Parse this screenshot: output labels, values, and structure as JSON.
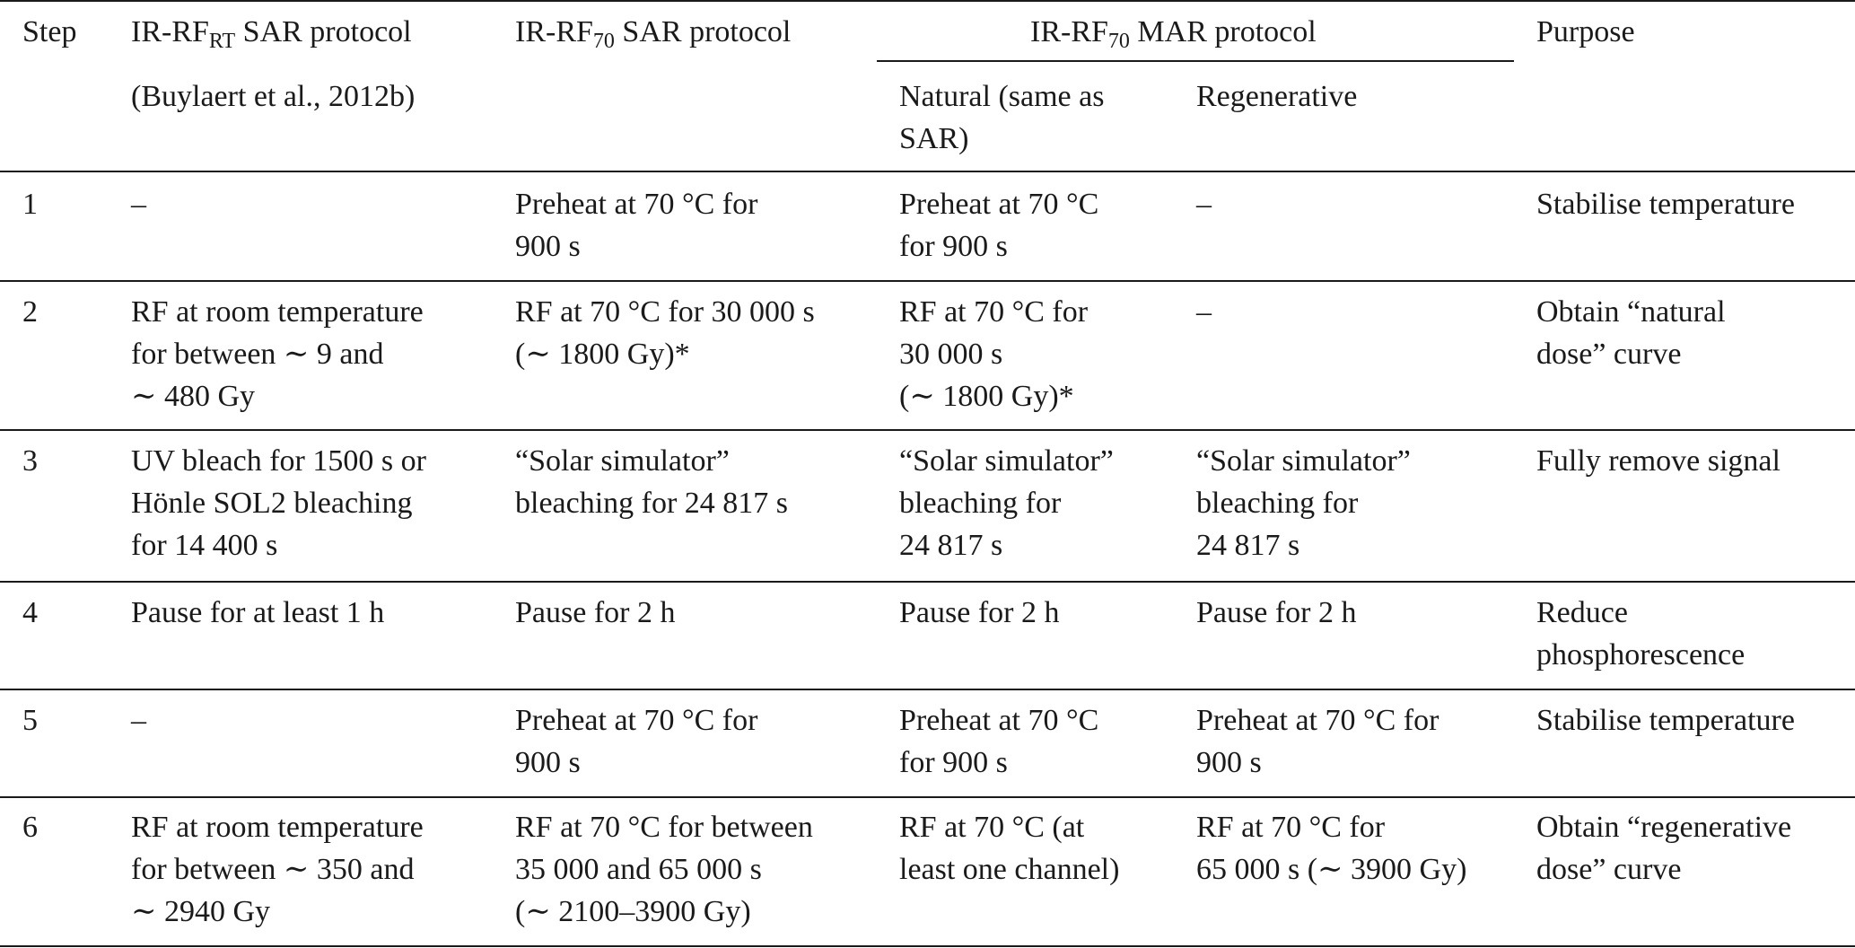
{
  "header": {
    "step": "Step",
    "col_rt_name_prefix": "IR-RF",
    "col_rt_name_sub": "RT",
    "col_rt_name_suffix": " SAR protocol",
    "col_rt_citation": "(Buylaert et al., 2012b)",
    "col_70sar_prefix": "IR-RF",
    "col_70sar_sub": "70",
    "col_70sar_suffix": " SAR protocol",
    "col_mar_prefix": "IR-RF",
    "col_mar_sub": "70",
    "col_mar_suffix": " MAR protocol",
    "col_mar_natural": [
      "Natural (same as",
      "SAR)"
    ],
    "col_mar_regenerative": "Regenerative",
    "col_purpose": "Purpose"
  },
  "rows": [
    {
      "step": "1",
      "rt": [
        "–"
      ],
      "sar70": [
        "Preheat at 70 °C for",
        "900 s"
      ],
      "mar_natural": [
        "Preheat at 70 °C",
        "for 900 s"
      ],
      "mar_regen": [
        "–"
      ],
      "purpose": [
        "Stabilise temperature"
      ]
    },
    {
      "step": "2",
      "rt": [
        "RF at room temperature",
        "for between ∼ 9 and",
        "∼ 480 Gy"
      ],
      "sar70": [
        "RF at 70 °C for 30 000 s",
        "(∼ 1800 Gy)*"
      ],
      "mar_natural": [
        "RF at 70 °C for",
        "30 000 s",
        "(∼ 1800 Gy)*"
      ],
      "mar_regen": [
        "–"
      ],
      "purpose": [
        "Obtain “natural",
        "dose” curve"
      ]
    },
    {
      "step": "3",
      "rt": [
        "UV bleach for 1500 s or",
        "Hönle SOL2 bleaching",
        "for 14 400 s"
      ],
      "sar70": [
        "“Solar simulator”",
        "bleaching for 24 817 s"
      ],
      "mar_natural": [
        "“Solar simulator”",
        "bleaching for",
        "24 817 s"
      ],
      "mar_regen": [
        "“Solar simulator”",
        "bleaching for",
        "24 817 s"
      ],
      "purpose": [
        "Fully remove signal"
      ]
    },
    {
      "step": "4",
      "rt": [
        "Pause for at least 1 h"
      ],
      "sar70": [
        "Pause for 2 h"
      ],
      "mar_natural": [
        "Pause for 2 h"
      ],
      "mar_regen": [
        "Pause for 2 h"
      ],
      "purpose": [
        "Reduce",
        "phosphorescence"
      ]
    },
    {
      "step": "5",
      "rt": [
        "–"
      ],
      "sar70": [
        "Preheat at 70 °C for",
        "900 s"
      ],
      "mar_natural": [
        "Preheat at 70 °C",
        "for 900 s"
      ],
      "mar_regen": [
        "Preheat at 70 °C for",
        "900 s"
      ],
      "purpose": [
        "Stabilise temperature"
      ]
    },
    {
      "step": "6",
      "rt": [
        "RF at room temperature",
        "for between ∼ 350 and",
        "∼  2940 Gy"
      ],
      "sar70": [
        "RF at 70 °C for between",
        "35 000 and 65 000 s",
        "(∼ 2100–3900 Gy)"
      ],
      "mar_natural": [
        "RF at 70 °C (at",
        "least one channel)"
      ],
      "mar_regen": [
        "RF at 70 °C for",
        "65 000 s (∼ 3900 Gy)"
      ],
      "purpose": [
        "Obtain “regenerative",
        "dose” curve"
      ]
    }
  ]
}
